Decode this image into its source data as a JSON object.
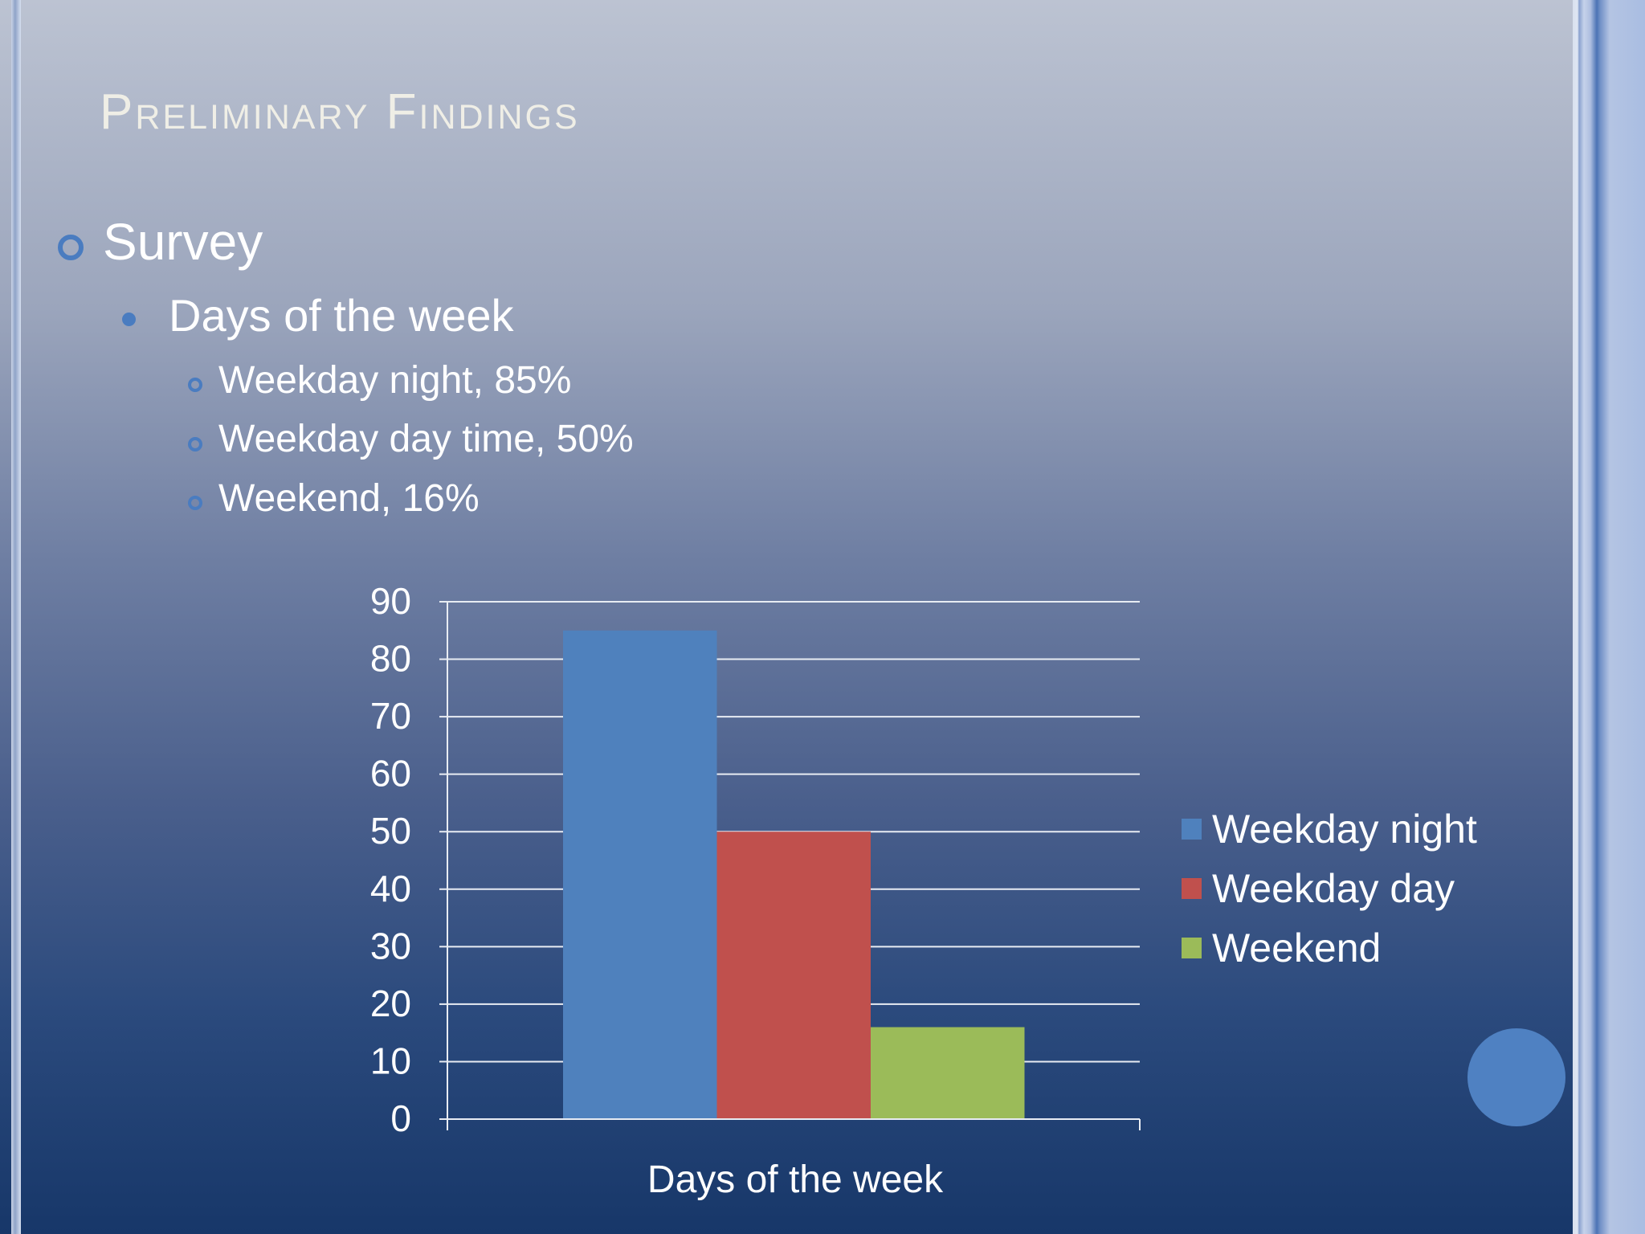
{
  "slide": {
    "title": "Preliminary Findings",
    "bullets": {
      "level1": "Survey",
      "level2": "Days of the week",
      "level3": [
        "Weekday night, 85%",
        "Weekday day time, 50%",
        "Weekend, 16%"
      ]
    }
  },
  "colors": {
    "accent": "#4a7cc0"
  },
  "chart_data": {
    "type": "bar",
    "categories": [
      "Days of the week"
    ],
    "series": [
      {
        "name": "Weekday night",
        "values": [
          85
        ],
        "color": "#4f81bd"
      },
      {
        "name": "Weekday day",
        "values": [
          50
        ],
        "color": "#c0504d"
      },
      {
        "name": "Weekend",
        "values": [
          16
        ],
        "color": "#9bbb59"
      }
    ],
    "xlabel": "Days of the week",
    "ylabel": "",
    "ylim": [
      0,
      90
    ],
    "yticks": [
      0,
      10,
      20,
      30,
      40,
      50,
      60,
      70,
      80,
      90
    ],
    "grid": true,
    "legend": "right"
  }
}
